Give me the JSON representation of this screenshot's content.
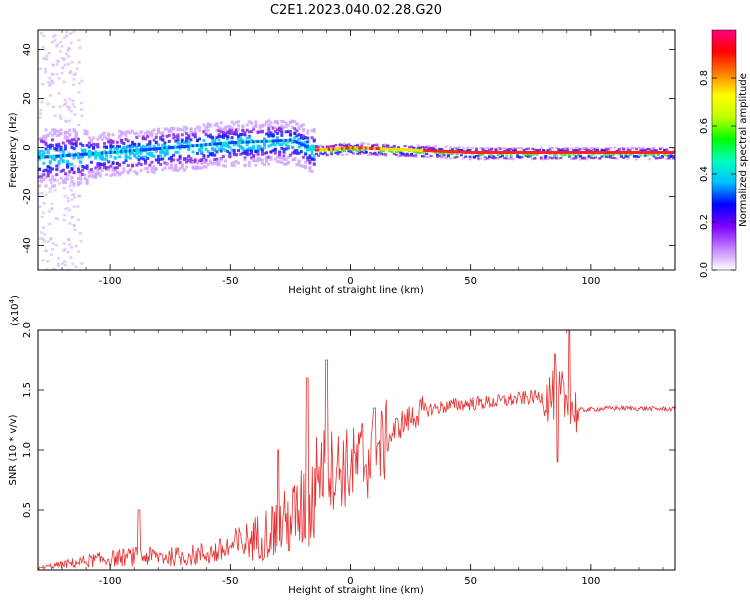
{
  "figure_title": "C2E1.2023.040.02.28.G20",
  "chart_data": [
    {
      "type": "heatmap",
      "title": "",
      "xlabel": "Height of straight line (km)",
      "ylabel": "Frequency (Hz)",
      "xlim": [
        -130,
        135
      ],
      "ylim": [
        -50,
        48
      ],
      "x_ticks": [
        "-100",
        "-50",
        "0",
        "50",
        "100"
      ],
      "y_ticks": [
        "-40",
        "-20",
        "0",
        "20",
        "40"
      ],
      "colorbar": {
        "label": "Normalized spectral amplitude",
        "range": [
          0.0,
          1.0
        ],
        "ticks": [
          "0.0",
          "0.2",
          "0.4",
          "0.6",
          "0.8"
        ],
        "colors": [
          "#ffffff",
          "#c080ff",
          "#8000ff",
          "#0000ff",
          "#00c0ff",
          "#00ffc0",
          "#00ff00",
          "#c0ff00",
          "#ffff00",
          "#ff8000",
          "#ff0000",
          "#ff0080"
        ]
      },
      "ridge": {
        "description_points": [
          {
            "x": -130,
            "y": -4
          },
          {
            "x": -100,
            "y": -2
          },
          {
            "x": -75,
            "y": 0
          },
          {
            "x": -50,
            "y": 2
          },
          {
            "x": -25,
            "y": 3
          },
          {
            "x": -15,
            "y": -1
          },
          {
            "x": 0,
            "y": 0
          },
          {
            "x": 25,
            "y": -1
          },
          {
            "x": 50,
            "y": -2
          },
          {
            "x": 100,
            "y": -2
          },
          {
            "x": 135,
            "y": -2
          }
        ]
      }
    },
    {
      "type": "line",
      "title": "",
      "xlabel": "Height of straight line (km)",
      "ylabel": "SNR (10 * v/v)",
      "y_scale_label": "(x10",
      "y_scale_exp": "4",
      "y_scale_close": ")",
      "xlim": [
        -130,
        135
      ],
      "ylim": [
        0,
        2.0
      ],
      "x_ticks": [
        "-100",
        "-50",
        "0",
        "50",
        "100"
      ],
      "y_ticks": [
        "0.5",
        "1.0",
        "1.5",
        "2.0"
      ],
      "series_color": "#e83030",
      "envelope": [
        {
          "x": -130,
          "y": 0.02
        },
        {
          "x": -110,
          "y": 0.1
        },
        {
          "x": -90,
          "y": 0.15
        },
        {
          "x": -70,
          "y": 0.15
        },
        {
          "x": -55,
          "y": 0.2
        },
        {
          "x": -40,
          "y": 0.35
        },
        {
          "x": -25,
          "y": 0.55
        },
        {
          "x": -12,
          "y": 0.85
        },
        {
          "x": 0,
          "y": 0.85
        },
        {
          "x": 10,
          "y": 0.95
        },
        {
          "x": 20,
          "y": 1.2
        },
        {
          "x": 30,
          "y": 1.33
        },
        {
          "x": 45,
          "y": 1.38
        },
        {
          "x": 60,
          "y": 1.4
        },
        {
          "x": 75,
          "y": 1.44
        },
        {
          "x": 88,
          "y": 1.45
        },
        {
          "x": 93,
          "y": 1.33
        },
        {
          "x": 110,
          "y": 1.35
        },
        {
          "x": 135,
          "y": 1.34
        }
      ],
      "spikes": [
        {
          "x": -88,
          "y": 0.5
        },
        {
          "x": -30,
          "y": 1.0
        },
        {
          "x": -18,
          "y": 1.6
        },
        {
          "x": -10,
          "y": 1.75
        },
        {
          "x": 5,
          "y": 1.22
        },
        {
          "x": 10,
          "y": 1.35
        },
        {
          "x": 85,
          "y": 1.8
        },
        {
          "x": 91,
          "y": 2.0
        },
        {
          "x": 86,
          "y": 0.9
        }
      ]
    }
  ]
}
